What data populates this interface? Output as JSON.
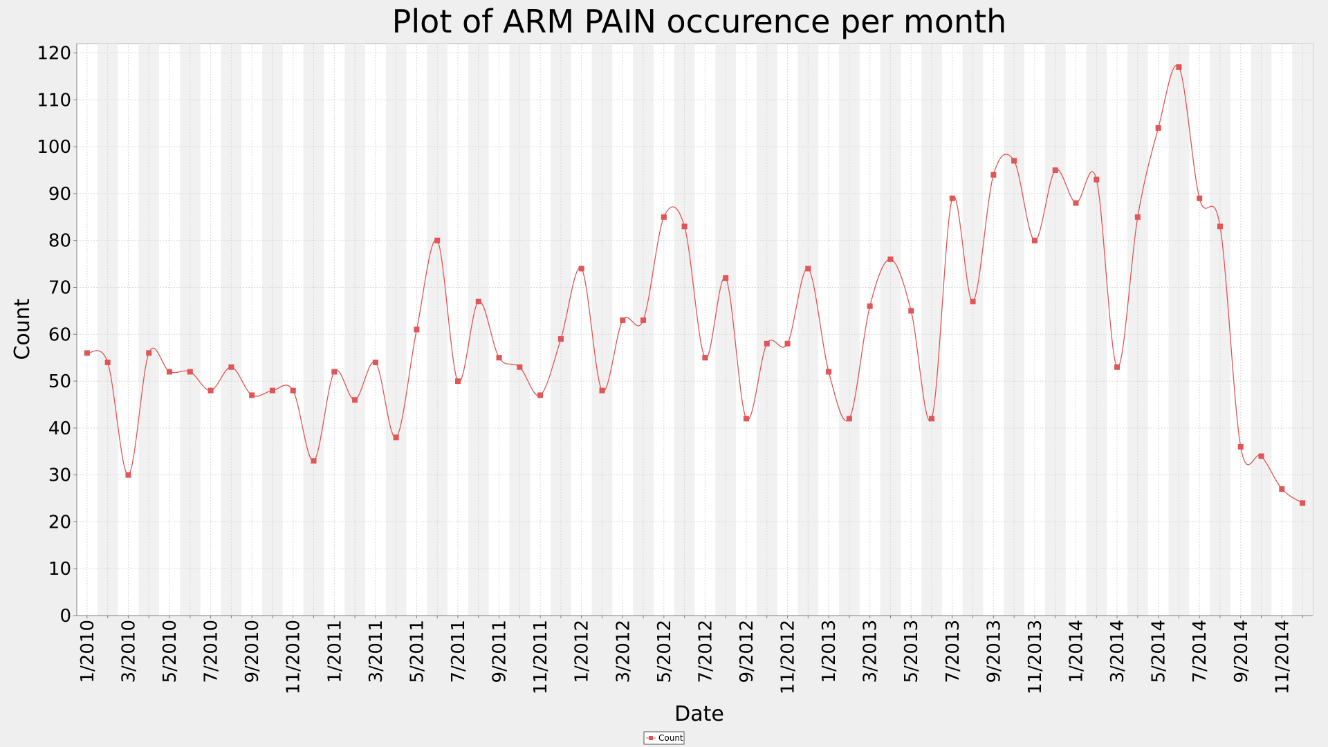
{
  "chart_data": {
    "type": "line",
    "title": "Plot of ARM PAIN occurence per month",
    "xlabel": "Date",
    "ylabel": "Count",
    "ylim": [
      0,
      122
    ],
    "yticks": [
      0,
      10,
      20,
      30,
      40,
      50,
      60,
      70,
      80,
      90,
      100,
      110,
      120
    ],
    "grid": true,
    "legend_position": "bottom-center",
    "x_tick_labels": [
      "1/2010",
      "3/2010",
      "5/2010",
      "7/2010",
      "9/2010",
      "11/2010",
      "1/2011",
      "3/2011",
      "5/2011",
      "7/2011",
      "9/2011",
      "11/2011",
      "1/2012",
      "3/2012",
      "5/2012",
      "7/2012",
      "9/2012",
      "11/2012",
      "1/2013",
      "3/2013",
      "5/2013",
      "7/2013",
      "9/2013",
      "11/2013",
      "1/2014",
      "3/2014",
      "5/2014",
      "7/2014",
      "9/2014",
      "11/2014"
    ],
    "x": [
      "1/2010",
      "2/2010",
      "3/2010",
      "4/2010",
      "5/2010",
      "6/2010",
      "7/2010",
      "8/2010",
      "9/2010",
      "10/2010",
      "11/2010",
      "12/2010",
      "1/2011",
      "2/2011",
      "3/2011",
      "4/2011",
      "5/2011",
      "6/2011",
      "7/2011",
      "8/2011",
      "9/2011",
      "10/2011",
      "11/2011",
      "12/2011",
      "1/2012",
      "2/2012",
      "3/2012",
      "4/2012",
      "5/2012",
      "6/2012",
      "7/2012",
      "8/2012",
      "9/2012",
      "10/2012",
      "11/2012",
      "12/2012",
      "1/2013",
      "2/2013",
      "3/2013",
      "4/2013",
      "5/2013",
      "6/2013",
      "7/2013",
      "8/2013",
      "9/2013",
      "10/2013",
      "11/2013",
      "12/2013",
      "1/2014",
      "2/2014",
      "3/2014",
      "4/2014",
      "5/2014",
      "6/2014",
      "7/2014",
      "8/2014",
      "9/2014",
      "10/2014",
      "11/2014",
      "12/2014"
    ],
    "series": [
      {
        "name": "Count",
        "color": "#e05555",
        "values": [
          56,
          54,
          30,
          56,
          52,
          52,
          48,
          53,
          47,
          48,
          48,
          33,
          52,
          46,
          54,
          38,
          61,
          80,
          50,
          67,
          55,
          53,
          47,
          59,
          74,
          48,
          63,
          63,
          85,
          83,
          55,
          72,
          42,
          58,
          58,
          74,
          52,
          42,
          66,
          76,
          65,
          42,
          89,
          67,
          94,
          97,
          80,
          95,
          88,
          93,
          53,
          85,
          104,
          117,
          89,
          83,
          36,
          34,
          27,
          24
        ]
      }
    ]
  }
}
